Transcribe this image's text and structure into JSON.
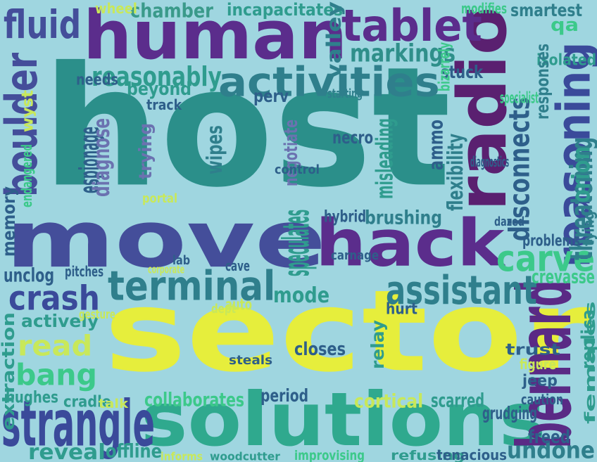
{
  "palette": {
    "background": "#9fd6e0",
    "colors": [
      "#3a2a80",
      "#5b2d8c",
      "#2e5f8a",
      "#2f9c8e",
      "#3cc98a",
      "#c8e85a",
      "#e6ee3c",
      "#6b72b0"
    ]
  },
  "words": [
    {
      "text": "sector",
      "color": "#e6ee3c"
    },
    {
      "text": "host",
      "color": "#2b8f8a"
    },
    {
      "text": "move",
      "color": "#444e9a"
    },
    {
      "text": "human",
      "color": "#5b2d8c"
    },
    {
      "text": "solutions",
      "color": "#2fa98e"
    },
    {
      "text": "radio",
      "color": "#5a2070"
    },
    {
      "text": "hack",
      "color": "#5b2d8c"
    },
    {
      "text": "bernard",
      "color": "#5a2a85"
    },
    {
      "text": "reasoning",
      "color": "#3a4a9a"
    },
    {
      "text": "strangle",
      "color": "#3a4a9a"
    },
    {
      "text": "tablet",
      "color": "#5b2d8c"
    },
    {
      "text": "activities",
      "color": "#2f7f8c"
    },
    {
      "text": "terminal",
      "color": "#2f7f8c"
    },
    {
      "text": "assistant",
      "color": "#2f7f8c"
    },
    {
      "text": "carve",
      "color": "#3cc98a"
    },
    {
      "text": "crash",
      "color": "#3a4a9a"
    },
    {
      "text": "boulder",
      "color": "#444e9a"
    },
    {
      "text": "fluid",
      "color": "#444e9a"
    },
    {
      "text": "chamber",
      "color": "#3a9a8a"
    },
    {
      "text": "markings",
      "color": "#2f8f8a"
    },
    {
      "text": "reasonably",
      "color": "#2f9c8e"
    },
    {
      "text": "read",
      "color": "#c8e85a"
    },
    {
      "text": "bang",
      "color": "#3cc98a"
    },
    {
      "text": "reveal",
      "color": "#2f9c8e"
    },
    {
      "text": "undone",
      "color": "#2f7f8c"
    },
    {
      "text": "disconnects",
      "color": "#2e5f8a"
    },
    {
      "text": "threatening",
      "color": "#2f7f8c"
    },
    {
      "text": "incapacitates",
      "color": "#2f9c8e"
    },
    {
      "text": "smartest",
      "color": "#2f7f8c"
    },
    {
      "text": "modifies",
      "color": "#3cc98a"
    },
    {
      "text": "qa",
      "color": "#3cc98a"
    },
    {
      "text": "isolated",
      "color": "#2f9c8e"
    },
    {
      "text": "valley",
      "color": "#2f7f8c"
    },
    {
      "text": "wheel",
      "color": "#c8e85a"
    },
    {
      "text": "stuck",
      "color": "#2e5f8a"
    },
    {
      "text": "bizarrely",
      "color": "#3cc98a"
    },
    {
      "text": "responses",
      "color": "#2f7f8c"
    },
    {
      "text": "needs",
      "color": "#2e5f8a"
    },
    {
      "text": "beyond",
      "color": "#2f9c8e"
    },
    {
      "text": "perv",
      "color": "#2e5f8a"
    },
    {
      "text": "starting",
      "color": "#2f7f8c"
    },
    {
      "text": "track",
      "color": "#2e5f8a"
    },
    {
      "text": "trying",
      "color": "#6b72b0"
    },
    {
      "text": "espionage",
      "color": "#2e5f8a"
    },
    {
      "text": "diagnose",
      "color": "#6b72b0"
    },
    {
      "text": "endangered",
      "color": "#3cc98a"
    },
    {
      "text": "wipes",
      "color": "#2f7f8c"
    },
    {
      "text": "negotiate",
      "color": "#6b72b0"
    },
    {
      "text": "necro",
      "color": "#2e5f8a"
    },
    {
      "text": "ammo",
      "color": "#2e5f8a"
    },
    {
      "text": "diagnostics",
      "color": "#2e5f8a"
    },
    {
      "text": "flexibility",
      "color": "#2f7f8c"
    },
    {
      "text": "misleading",
      "color": "#2f9c8e"
    },
    {
      "text": "control",
      "color": "#2e5f8a"
    },
    {
      "text": "orion",
      "color": "#2f9c8e"
    },
    {
      "text": "tying",
      "color": "#2f7f8c"
    },
    {
      "text": "portal",
      "color": "#c8e85a"
    },
    {
      "text": "hybrid",
      "color": "#2e5f8a"
    },
    {
      "text": "brushing",
      "color": "#2f7f8c"
    },
    {
      "text": "dazed",
      "color": "#2e5f8a"
    },
    {
      "text": "problems",
      "color": "#2e5f8a"
    },
    {
      "text": "memory",
      "color": "#2e5f8a"
    },
    {
      "text": "speculates",
      "color": "#2f9c8e"
    },
    {
      "text": "lab",
      "color": "#2e5f8a"
    },
    {
      "text": "cave",
      "color": "#2e5f8a"
    },
    {
      "text": "corporate",
      "color": "#c8e85a"
    },
    {
      "text": "females",
      "color": "#2f9c8e"
    },
    {
      "text": "unclog",
      "color": "#2e5f8a"
    },
    {
      "text": "pitches",
      "color": "#2e5f8a"
    },
    {
      "text": "carnage",
      "color": "#2e5f8a"
    },
    {
      "text": "crevasse",
      "color": "#3cc98a"
    },
    {
      "text": "mode",
      "color": "#2f9c8e"
    },
    {
      "text": "hurt",
      "color": "#2e5f8a"
    },
    {
      "text": "actively",
      "color": "#2f9c8e"
    },
    {
      "text": "gesture",
      "color": "#c8e85a"
    },
    {
      "text": "extraction",
      "color": "#2f9c8e"
    },
    {
      "text": "replica",
      "color": "#2f9c8e"
    },
    {
      "text": "trust",
      "color": "#2e5f8a"
    },
    {
      "text": "closes",
      "color": "#2e5f8a"
    },
    {
      "text": "relay",
      "color": "#2f9c8e"
    },
    {
      "text": "steals",
      "color": "#2e5f8a"
    },
    {
      "text": "figure",
      "color": "#c8e85a"
    },
    {
      "text": "jeep",
      "color": "#2e5f8a"
    },
    {
      "text": "caution",
      "color": "#2e5f8a"
    },
    {
      "text": "hughes",
      "color": "#2f9c8e"
    },
    {
      "text": "cradle",
      "color": "#2f9c8e"
    },
    {
      "text": "collaborates",
      "color": "#3cc98a"
    },
    {
      "text": "period",
      "color": "#2e5f8a"
    },
    {
      "text": "cortical",
      "color": "#c8e85a"
    },
    {
      "text": "scarred",
      "color": "#2f9c8e"
    },
    {
      "text": "grudging",
      "color": "#2e5f8a"
    },
    {
      "text": "freed",
      "color": "#2e5f8a"
    },
    {
      "text": "offline",
      "color": "#2f9c8e"
    },
    {
      "text": "informs",
      "color": "#c8e85a"
    },
    {
      "text": "woodcutter",
      "color": "#2f9c8e"
    },
    {
      "text": "improvising",
      "color": "#3cc98a"
    },
    {
      "text": "refusing",
      "color": "#2f9c8e"
    },
    {
      "text": "tenacious",
      "color": "#2e5f8a"
    },
    {
      "text": "dept",
      "color": "#c8e85a"
    },
    {
      "text": "auto",
      "color": "#c8e85a"
    },
    {
      "text": "talk",
      "color": "#c8e85a"
    },
    {
      "text": "wyst",
      "color": "#c8e85a"
    },
    {
      "text": "specialist",
      "color": "#3cc98a"
    }
  ]
}
